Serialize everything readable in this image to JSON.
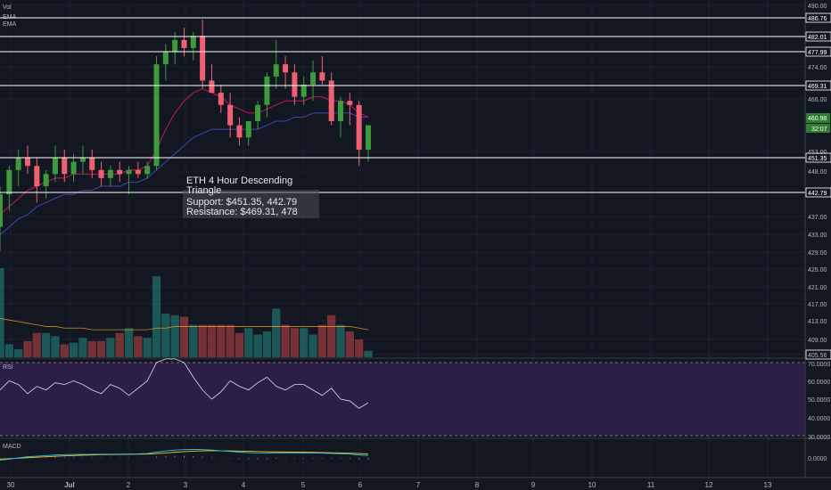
{
  "chart_data": {
    "type": "candlestick",
    "title": "ETH 4 Hour Descending Triangle",
    "annotation": {
      "title": "ETH 4 Hour Descending Triangle",
      "support": "Support: $451.35, 442.79",
      "resistance": "Resistance: $469.31, 478"
    },
    "indicator_labels": [
      "Vol",
      "EMA",
      "EMA"
    ],
    "x_tick_labels": [
      "30",
      "Jul",
      "2",
      "3",
      "4",
      "5",
      "6",
      "7",
      "8",
      "9",
      "10",
      "11",
      "12",
      "13"
    ],
    "price_axis": {
      "ticks": [
        "490.00",
        "474.00",
        "466.00",
        "453.00",
        "448.00",
        "437.00",
        "433.00",
        "429.00",
        "425.00",
        "421.00",
        "417.00",
        "413.00",
        "409.00",
        "405.56"
      ],
      "ylim": [
        405.56,
        490.0
      ]
    },
    "horizontal_levels": [
      {
        "value": 486.76,
        "label": "486.76"
      },
      {
        "value": 482.01,
        "label": "482.01"
      },
      {
        "value": 477.99,
        "label": "477.99"
      },
      {
        "value": 469.31,
        "label": "469.31"
      },
      {
        "value": 451.35,
        "label": "451.35"
      },
      {
        "value": 442.79,
        "label": "442.79"
      }
    ],
    "last_price": {
      "value": 460.98,
      "label": "460.98",
      "countdown": "32:07"
    },
    "candles": [
      {
        "o": 436,
        "h": 446,
        "l": 430,
        "c": 444
      },
      {
        "o": 444,
        "h": 451,
        "l": 440,
        "c": 450
      },
      {
        "o": 450,
        "h": 455,
        "l": 446,
        "c": 453
      },
      {
        "o": 453,
        "h": 456,
        "l": 449,
        "c": 451
      },
      {
        "o": 451,
        "h": 453,
        "l": 442,
        "c": 446
      },
      {
        "o": 446,
        "h": 450,
        "l": 443,
        "c": 449
      },
      {
        "o": 449,
        "h": 456,
        "l": 447,
        "c": 453
      },
      {
        "o": 453,
        "h": 455,
        "l": 447,
        "c": 449
      },
      {
        "o": 449,
        "h": 454,
        "l": 447,
        "c": 452
      },
      {
        "o": 452,
        "h": 456,
        "l": 449,
        "c": 453
      },
      {
        "o": 453,
        "h": 455,
        "l": 448,
        "c": 450
      },
      {
        "o": 450,
        "h": 452,
        "l": 446,
        "c": 448
      },
      {
        "o": 448,
        "h": 451,
        "l": 446,
        "c": 450
      },
      {
        "o": 450,
        "h": 452,
        "l": 447,
        "c": 449
      },
      {
        "o": 449,
        "h": 451,
        "l": 444,
        "c": 450
      },
      {
        "o": 450,
        "h": 452,
        "l": 448,
        "c": 449
      },
      {
        "o": 449,
        "h": 452,
        "l": 448,
        "c": 451
      },
      {
        "o": 451,
        "h": 478,
        "l": 450,
        "c": 476
      },
      {
        "o": 476,
        "h": 481,
        "l": 472,
        "c": 479
      },
      {
        "o": 479,
        "h": 484,
        "l": 476,
        "c": 482
      },
      {
        "o": 482,
        "h": 485,
        "l": 478,
        "c": 480
      },
      {
        "o": 480,
        "h": 484,
        "l": 477,
        "c": 483
      },
      {
        "o": 483,
        "h": 487,
        "l": 470,
        "c": 472
      },
      {
        "o": 472,
        "h": 476,
        "l": 469,
        "c": 469
      },
      {
        "o": 469,
        "h": 471,
        "l": 464,
        "c": 466
      },
      {
        "o": 466,
        "h": 469,
        "l": 458,
        "c": 461
      },
      {
        "o": 461,
        "h": 463,
        "l": 456,
        "c": 458
      },
      {
        "o": 458,
        "h": 462,
        "l": 456,
        "c": 462
      },
      {
        "o": 462,
        "h": 467,
        "l": 460,
        "c": 466
      },
      {
        "o": 466,
        "h": 474,
        "l": 463,
        "c": 473
      },
      {
        "o": 473,
        "h": 482,
        "l": 470,
        "c": 476
      },
      {
        "o": 476,
        "h": 478,
        "l": 470,
        "c": 474
      },
      {
        "o": 474,
        "h": 476,
        "l": 466,
        "c": 468
      },
      {
        "o": 468,
        "h": 473,
        "l": 466,
        "c": 471
      },
      {
        "o": 471,
        "h": 477,
        "l": 467,
        "c": 474
      },
      {
        "o": 474,
        "h": 478,
        "l": 471,
        "c": 472
      },
      {
        "o": 472,
        "h": 474,
        "l": 461,
        "c": 462
      },
      {
        "o": 462,
        "h": 468,
        "l": 458,
        "c": 467
      },
      {
        "o": 467,
        "h": 469,
        "l": 461,
        "c": 466
      },
      {
        "o": 466,
        "h": 467,
        "l": 451,
        "c": 455
      },
      {
        "o": 455,
        "h": 461,
        "l": 452,
        "c": 461
      }
    ],
    "ema1": [
      439,
      441,
      443,
      445,
      446,
      447,
      448,
      448,
      449,
      449,
      449,
      449,
      449,
      449,
      450,
      450,
      451,
      455,
      460,
      464,
      467,
      469,
      470,
      469,
      468,
      466,
      465,
      464,
      464,
      465,
      466,
      467,
      467,
      467,
      468,
      468,
      467,
      467,
      466,
      464,
      463
    ],
    "ema2": [
      434,
      436,
      438,
      439,
      441,
      442,
      443,
      444,
      444,
      445,
      445,
      446,
      446,
      446,
      447,
      447,
      448,
      450,
      452,
      454,
      456,
      458,
      459,
      460,
      460,
      460,
      460,
      460,
      460,
      461,
      462,
      462,
      463,
      463,
      464,
      464,
      464,
      464,
      464,
      463,
      463
    ],
    "volume": [
      55,
      8,
      5,
      10,
      15,
      15,
      13,
      8,
      9,
      12,
      10,
      10,
      12,
      15,
      18,
      13,
      12,
      50,
      27,
      26,
      25,
      20,
      20,
      20,
      20,
      20,
      15,
      18,
      14,
      16,
      30,
      20,
      18,
      18,
      14,
      20,
      26,
      20,
      16,
      11,
      4
    ],
    "volume_ma": [
      24,
      23,
      22,
      21,
      20,
      19,
      19,
      18,
      18,
      18,
      17,
      17,
      17,
      17,
      17,
      17,
      17,
      18,
      18,
      19,
      19,
      19,
      19,
      19,
      19,
      19,
      19,
      19,
      19,
      19,
      19,
      19,
      19,
      19,
      19,
      19,
      19,
      19,
      19,
      18,
      17
    ],
    "rsi": {
      "label": "RSI",
      "ticks": [
        "70.0000",
        "60.0000",
        "50.0000",
        "40.0000",
        "30.0000"
      ],
      "ylim": [
        30,
        70
      ],
      "upper": 70,
      "lower": 30,
      "values": [
        55,
        60,
        58,
        53,
        57,
        55,
        59,
        58,
        60,
        58,
        55,
        53,
        58,
        56,
        52,
        56,
        60,
        70,
        72,
        72,
        70,
        62,
        55,
        50,
        54,
        60,
        57,
        55,
        59,
        62,
        57,
        55,
        58,
        58,
        55,
        52,
        56,
        50,
        49,
        45,
        48
      ]
    },
    "macd": {
      "label": "MACD",
      "ticks": [
        "0.0000"
      ],
      "macd": [
        -2,
        -1,
        0,
        1,
        1.5,
        2,
        2.5,
        2.8,
        3,
        3,
        3.1,
        3.2,
        3.2,
        3.3,
        3.4,
        3.5,
        3.8,
        5,
        6,
        6.8,
        7.2,
        7.4,
        7.2,
        6.8,
        6.2,
        5.6,
        5,
        4.6,
        4.3,
        4.2,
        4.4,
        4.5,
        4.4,
        4.3,
        4.3,
        4.2,
        3.8,
        3.6,
        3.3,
        2.6,
        2.2
      ],
      "signal": [
        -1,
        -0.6,
        -0.2,
        0.2,
        0.6,
        1,
        1.4,
        1.8,
        2.1,
        2.4,
        2.6,
        2.8,
        2.9,
        3,
        3.1,
        3.2,
        3.3,
        3.7,
        4.3,
        4.9,
        5.4,
        5.8,
        6.1,
        6.2,
        6.2,
        6.1,
        5.9,
        5.7,
        5.5,
        5.3,
        5.2,
        5.1,
        5,
        4.9,
        4.8,
        4.7,
        4.5,
        4.3,
        4.1,
        3.8,
        3.5
      ],
      "hist": [
        -1,
        -0.4,
        0.2,
        0.8,
        0.9,
        1,
        1.1,
        1,
        0.9,
        0.6,
        0.5,
        0.4,
        0.3,
        0.3,
        0.3,
        0.3,
        0.5,
        1.3,
        1.7,
        1.9,
        1.8,
        1.6,
        1.1,
        0.6,
        0,
        -0.5,
        -0.9,
        -1.1,
        -1.2,
        -1.1,
        -0.8,
        -0.6,
        -0.6,
        -0.6,
        -0.5,
        -0.5,
        -0.7,
        -0.7,
        -0.8,
        -1.2,
        -1.3
      ]
    }
  },
  "colors": {
    "background": "#131722",
    "up": "#26a69a",
    "up_body": "#2e7d32",
    "down": "#ef5350",
    "ema1": "#c2185b",
    "ema2": "#3949ab",
    "vol_ma": "#ffa726",
    "rsi_fill": "#2c1f47",
    "rsi_line": "#dddddd",
    "macd": "#26c6da",
    "signal": "#fbc02d",
    "level": "#ffffff",
    "axis_text": "#b2b5be"
  }
}
